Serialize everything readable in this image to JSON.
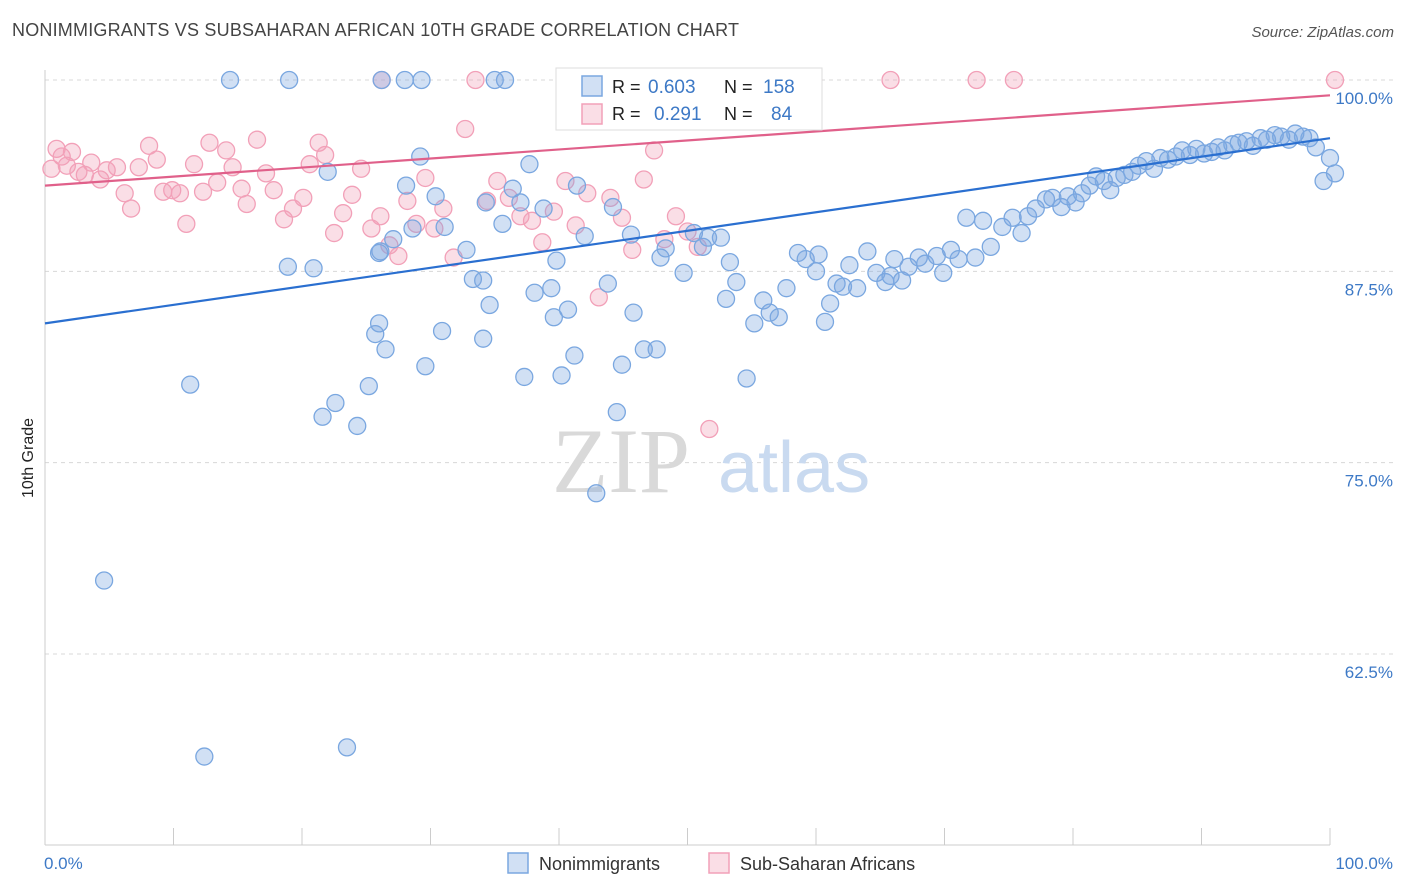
{
  "title": "NONIMMIGRANTS VS SUBSAHARAN AFRICAN 10TH GRADE CORRELATION CHART",
  "source": "Source: ZipAtlas.com",
  "watermark": {
    "zip": "ZIP",
    "atlas": "atlas"
  },
  "colors": {
    "blue": "#7aa7e0",
    "blue_fill": "rgba(122,167,224,0.35)",
    "blue_line": "#2a6fd0",
    "pink": "#f2a0b8",
    "pink_fill": "rgba(242,160,184,0.35)",
    "pink_line": "#e0608a",
    "tick_text": "#3d79c6",
    "grid": "#d8d8d8"
  },
  "legend": {
    "rows": [
      {
        "r_label": "R =",
        "r_value": "0.603",
        "n_label": "N =",
        "n_value": "158",
        "color": "blue"
      },
      {
        "r_label": "R =",
        "r_value": "0.291",
        "n_label": "N =",
        "n_value": "84",
        "color": "pink"
      }
    ]
  },
  "bottom_legend": [
    "Nonimmigrants",
    "Sub-Saharan Africans"
  ],
  "chart_data": {
    "type": "scatter",
    "xlabel": "",
    "ylabel": "10th Grade",
    "xlim": [
      0,
      100
    ],
    "ylim": [
      51.5,
      101.5
    ],
    "x_tick_labels": [
      "0.0%",
      "100.0%"
    ],
    "y_ticks": [
      62.5,
      75.0,
      87.5,
      100.0
    ],
    "y_tick_labels": [
      "62.5%",
      "75.0%",
      "87.5%",
      "100.0%"
    ],
    "grid": true,
    "legend_position": "top-center",
    "series": [
      {
        "name": "Nonimmigrants",
        "color": "blue",
        "trend": {
          "x": [
            0,
            100
          ],
          "y": [
            84.1,
            96.2
          ]
        },
        "points": [
          [
            4.6,
            67.3
          ],
          [
            11.3,
            80.1
          ],
          [
            12.4,
            55.8
          ],
          [
            18.9,
            87.8
          ],
          [
            20.9,
            87.7
          ],
          [
            21.6,
            78.0
          ],
          [
            22.6,
            78.9
          ],
          [
            23.5,
            56.4
          ],
          [
            24.3,
            77.4
          ],
          [
            25.2,
            80.0
          ],
          [
            25.7,
            83.4
          ],
          [
            26.0,
            84.1
          ],
          [
            26.5,
            82.4
          ],
          [
            26.1,
            88.8
          ],
          [
            26.0,
            88.7
          ],
          [
            27.1,
            89.6
          ],
          [
            26.2,
            100.0
          ],
          [
            28.1,
            93.1
          ],
          [
            28.6,
            90.3
          ],
          [
            29.6,
            81.3
          ],
          [
            29.3,
            100.0
          ],
          [
            29.2,
            95.0
          ],
          [
            30.4,
            92.4
          ],
          [
            30.9,
            83.6
          ],
          [
            31.1,
            90.4
          ],
          [
            32.8,
            88.9
          ],
          [
            33.3,
            87.0
          ],
          [
            34.1,
            83.1
          ],
          [
            34.1,
            86.9
          ],
          [
            34.3,
            92.0
          ],
          [
            34.6,
            85.3
          ],
          [
            35.8,
            100.0
          ],
          [
            35.6,
            90.6
          ],
          [
            36.4,
            92.9
          ],
          [
            37.0,
            92.0
          ],
          [
            37.3,
            80.6
          ],
          [
            37.7,
            94.5
          ],
          [
            38.1,
            86.1
          ],
          [
            38.8,
            91.6
          ],
          [
            39.4,
            86.4
          ],
          [
            39.6,
            84.5
          ],
          [
            39.8,
            88.2
          ],
          [
            40.2,
            80.7
          ],
          [
            40.7,
            85.0
          ],
          [
            41.2,
            82.0
          ],
          [
            41.4,
            93.1
          ],
          [
            42.0,
            89.8
          ],
          [
            42.9,
            73.0
          ],
          [
            43.8,
            86.7
          ],
          [
            44.2,
            91.7
          ],
          [
            44.5,
            78.3
          ],
          [
            44.9,
            81.4
          ],
          [
            45.6,
            89.9
          ],
          [
            45.8,
            84.8
          ],
          [
            46.6,
            82.4
          ],
          [
            47.6,
            82.4
          ],
          [
            47.9,
            88.4
          ],
          [
            48.3,
            89.0
          ],
          [
            49.7,
            87.4
          ],
          [
            50.5,
            90.0
          ],
          [
            51.2,
            89.1
          ],
          [
            51.6,
            89.7
          ],
          [
            52.6,
            89.7
          ],
          [
            53.0,
            85.7
          ],
          [
            53.3,
            88.1
          ],
          [
            53.8,
            86.8
          ],
          [
            54.6,
            80.5
          ],
          [
            55.2,
            84.1
          ],
          [
            55.9,
            85.6
          ],
          [
            56.4,
            84.8
          ],
          [
            57.1,
            84.5
          ],
          [
            57.7,
            86.4
          ],
          [
            58.6,
            88.7
          ],
          [
            59.2,
            88.3
          ],
          [
            60.0,
            87.5
          ],
          [
            60.2,
            88.6
          ],
          [
            60.7,
            84.2
          ],
          [
            61.1,
            85.4
          ],
          [
            61.6,
            86.7
          ],
          [
            62.1,
            86.5
          ],
          [
            62.6,
            87.9
          ],
          [
            63.2,
            86.4
          ],
          [
            64.0,
            88.8
          ],
          [
            64.7,
            87.4
          ],
          [
            65.4,
            86.8
          ],
          [
            65.8,
            87.2
          ],
          [
            66.1,
            88.3
          ],
          [
            66.7,
            86.9
          ],
          [
            67.2,
            87.8
          ],
          [
            68.0,
            88.4
          ],
          [
            68.5,
            88.0
          ],
          [
            69.4,
            88.5
          ],
          [
            69.9,
            87.4
          ],
          [
            70.5,
            88.9
          ],
          [
            71.1,
            88.3
          ],
          [
            71.7,
            91.0
          ],
          [
            72.4,
            88.4
          ],
          [
            73.0,
            90.8
          ],
          [
            73.6,
            89.1
          ],
          [
            74.5,
            90.4
          ],
          [
            75.3,
            91.0
          ],
          [
            76.0,
            90.0
          ],
          [
            76.5,
            91.1
          ],
          [
            77.1,
            91.6
          ],
          [
            77.9,
            92.2
          ],
          [
            78.4,
            92.3
          ],
          [
            79.1,
            91.7
          ],
          [
            79.6,
            92.4
          ],
          [
            80.2,
            92.0
          ],
          [
            80.7,
            92.6
          ],
          [
            81.3,
            93.1
          ],
          [
            81.8,
            93.7
          ],
          [
            82.4,
            93.4
          ],
          [
            82.9,
            92.8
          ],
          [
            83.4,
            93.6
          ],
          [
            84.0,
            93.8
          ],
          [
            84.6,
            94.0
          ],
          [
            85.1,
            94.4
          ],
          [
            85.7,
            94.7
          ],
          [
            86.3,
            94.2
          ],
          [
            86.8,
            94.9
          ],
          [
            87.4,
            94.8
          ],
          [
            88.0,
            95.0
          ],
          [
            88.5,
            95.4
          ],
          [
            89.1,
            95.1
          ],
          [
            89.6,
            95.5
          ],
          [
            90.2,
            95.2
          ],
          [
            90.8,
            95.3
          ],
          [
            91.3,
            95.6
          ],
          [
            91.8,
            95.4
          ],
          [
            92.4,
            95.8
          ],
          [
            92.9,
            95.9
          ],
          [
            93.5,
            96.0
          ],
          [
            94.0,
            95.7
          ],
          [
            94.6,
            96.2
          ],
          [
            95.1,
            96.1
          ],
          [
            95.7,
            96.4
          ],
          [
            96.2,
            96.3
          ],
          [
            96.8,
            96.1
          ],
          [
            97.3,
            96.5
          ],
          [
            97.9,
            96.3
          ],
          [
            98.4,
            96.2
          ],
          [
            98.9,
            95.6
          ],
          [
            99.5,
            93.4
          ],
          [
            100.0,
            94.9
          ],
          [
            101.0,
            93.9
          ],
          [
            19.0,
            100.0
          ],
          [
            28.0,
            100.0
          ],
          [
            35.0,
            100.0
          ],
          [
            22.0,
            94.0
          ],
          [
            14.4,
            100.0
          ]
        ]
      },
      {
        "name": "Sub-Saharan Africans",
        "color": "pink",
        "trend": {
          "x": [
            0,
            100
          ],
          "y": [
            93.1,
            99.0
          ]
        },
        "points": [
          [
            0.5,
            94.2
          ],
          [
            0.9,
            95.5
          ],
          [
            1.3,
            95.0
          ],
          [
            1.7,
            94.4
          ],
          [
            2.1,
            95.3
          ],
          [
            2.6,
            94.0
          ],
          [
            3.1,
            93.8
          ],
          [
            3.6,
            94.6
          ],
          [
            4.3,
            93.5
          ],
          [
            4.8,
            94.1
          ],
          [
            5.6,
            94.3
          ],
          [
            6.2,
            92.6
          ],
          [
            6.7,
            91.6
          ],
          [
            7.3,
            94.3
          ],
          [
            8.1,
            95.7
          ],
          [
            8.7,
            94.8
          ],
          [
            9.2,
            92.7
          ],
          [
            9.9,
            92.8
          ],
          [
            10.5,
            92.6
          ],
          [
            11.0,
            90.6
          ],
          [
            11.6,
            94.5
          ],
          [
            12.3,
            92.7
          ],
          [
            12.8,
            95.9
          ],
          [
            13.4,
            93.3
          ],
          [
            14.1,
            95.4
          ],
          [
            14.6,
            94.3
          ],
          [
            15.3,
            92.9
          ],
          [
            15.7,
            91.9
          ],
          [
            16.5,
            96.1
          ],
          [
            17.2,
            93.9
          ],
          [
            17.8,
            92.8
          ],
          [
            18.6,
            90.9
          ],
          [
            19.3,
            91.6
          ],
          [
            20.1,
            92.3
          ],
          [
            20.6,
            94.5
          ],
          [
            21.3,
            95.9
          ],
          [
            21.8,
            95.1
          ],
          [
            22.5,
            90.0
          ],
          [
            23.2,
            91.3
          ],
          [
            23.9,
            92.5
          ],
          [
            24.6,
            94.2
          ],
          [
            25.4,
            90.3
          ],
          [
            26.1,
            91.1
          ],
          [
            26.8,
            89.2
          ],
          [
            27.5,
            88.5
          ],
          [
            28.2,
            92.1
          ],
          [
            28.9,
            90.6
          ],
          [
            29.6,
            93.6
          ],
          [
            30.3,
            90.3
          ],
          [
            31.0,
            91.6
          ],
          [
            31.8,
            88.4
          ],
          [
            32.7,
            96.8
          ],
          [
            33.5,
            100.0
          ],
          [
            34.4,
            92.1
          ],
          [
            35.2,
            93.4
          ],
          [
            36.1,
            92.3
          ],
          [
            37.0,
            91.1
          ],
          [
            37.9,
            90.8
          ],
          [
            38.7,
            89.4
          ],
          [
            39.6,
            91.4
          ],
          [
            40.5,
            93.4
          ],
          [
            41.3,
            90.5
          ],
          [
            42.2,
            92.6
          ],
          [
            43.1,
            85.8
          ],
          [
            44.0,
            92.3
          ],
          [
            44.9,
            91.0
          ],
          [
            45.7,
            88.9
          ],
          [
            46.6,
            93.5
          ],
          [
            47.4,
            95.4
          ],
          [
            48.2,
            89.6
          ],
          [
            49.1,
            91.1
          ],
          [
            50.0,
            90.1
          ],
          [
            50.8,
            89.1
          ],
          [
            51.7,
            77.2
          ],
          [
            53.6,
            100.0
          ],
          [
            57.6,
            100.0
          ],
          [
            59.8,
            100.0
          ],
          [
            65.8,
            100.0
          ],
          [
            72.5,
            100.0
          ],
          [
            75.4,
            100.0
          ],
          [
            26.2,
            100.0
          ],
          [
            41.5,
            100.0
          ],
          [
            52.3,
            100.0
          ],
          [
            101.0,
            100.0
          ]
        ]
      }
    ]
  }
}
